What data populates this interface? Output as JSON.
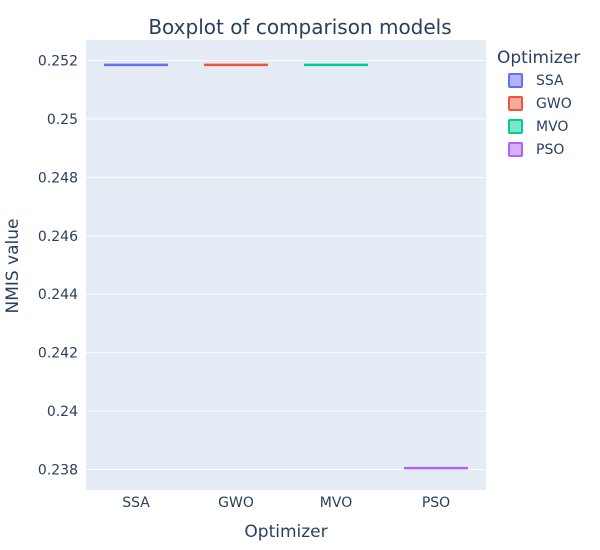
{
  "chart_data": {
    "type": "box",
    "title": "Boxplot of comparison models",
    "xlabel": "Optimizer",
    "ylabel": "NMIS value",
    "categories": [
      "SSA",
      "GWO",
      "MVO",
      "PSO"
    ],
    "series": [
      {
        "name": "SSA",
        "color": "#636efa",
        "values": [
          0.25185
        ]
      },
      {
        "name": "GWO",
        "color": "#ef553b",
        "values": [
          0.25185
        ]
      },
      {
        "name": "MVO",
        "color": "#00cc96",
        "values": [
          0.25185
        ]
      },
      {
        "name": "PSO",
        "color": "#ab63fa",
        "values": [
          0.23805
        ]
      }
    ],
    "ylim": [
      0.2373,
      0.2527
    ],
    "yticks": [
      0.238,
      0.24,
      0.242,
      0.244,
      0.246,
      0.248,
      0.25,
      0.252
    ],
    "ytick_labels": [
      "0.238",
      "0.24",
      "0.242",
      "0.244",
      "0.246",
      "0.248",
      "0.25",
      "0.252"
    ],
    "legend_title": "Optimizer",
    "legend_position": "right",
    "grid": true,
    "plot_bgcolor": "#e5ecf6"
  }
}
